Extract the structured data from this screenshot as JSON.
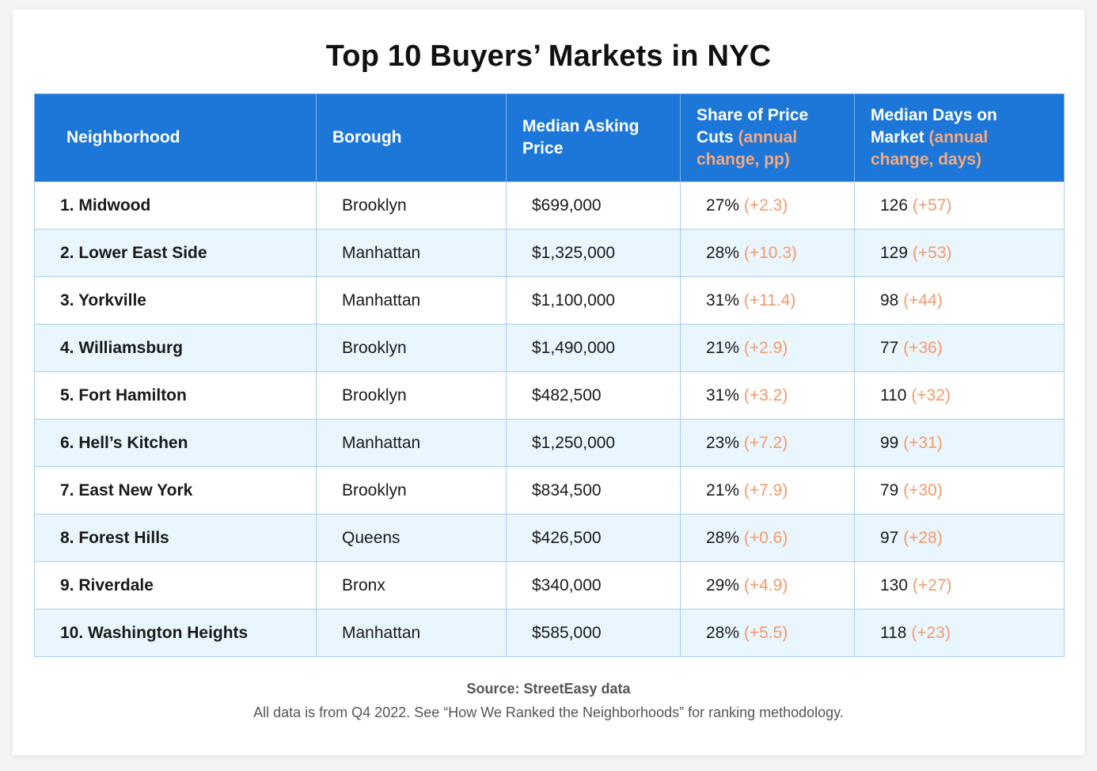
{
  "title": "Top 10 Buyers’ Markets in NYC",
  "table": {
    "headers": {
      "neighborhood": "Neighborhood",
      "borough": "Borough",
      "price": "Median Asking Price",
      "cuts_main": "Share of Price Cuts",
      "cuts_sub": "(annual change, pp)",
      "days_main": "Median Days on Market",
      "days_sub": "(annual change, days)"
    },
    "rows": [
      {
        "neighborhood": "1. Midwood",
        "borough": "Brooklyn",
        "price": "$699,000",
        "cuts": "27%",
        "cuts_change": "(+2.3)",
        "days": "126",
        "days_change": "(+57)"
      },
      {
        "neighborhood": "2. Lower East Side",
        "borough": "Manhattan",
        "price": "$1,325,000",
        "cuts": "28%",
        "cuts_change": "(+10.3)",
        "days": "129",
        "days_change": "(+53)"
      },
      {
        "neighborhood": "3. Yorkville",
        "borough": "Manhattan",
        "price": "$1,100,000",
        "cuts": "31%",
        "cuts_change": "(+11.4)",
        "days": "98",
        "days_change": "(+44)"
      },
      {
        "neighborhood": "4. Williamsburg",
        "borough": "Brooklyn",
        "price": "$1,490,000",
        "cuts": "21%",
        "cuts_change": "(+2.9)",
        "days": "77",
        "days_change": "(+36)"
      },
      {
        "neighborhood": "5. Fort Hamilton",
        "borough": "Brooklyn",
        "price": "$482,500",
        "cuts": "31%",
        "cuts_change": "(+3.2)",
        "days": "110",
        "days_change": "(+32)"
      },
      {
        "neighborhood": "6. Hell’s Kitchen",
        "borough": "Manhattan",
        "price": "$1,250,000",
        "cuts": "23%",
        "cuts_change": "(+7.2)",
        "days": "99",
        "days_change": "(+31)"
      },
      {
        "neighborhood": "7. East New York",
        "borough": "Brooklyn",
        "price": "$834,500",
        "cuts": "21%",
        "cuts_change": "(+7.9)",
        "days": "79",
        "days_change": "(+30)"
      },
      {
        "neighborhood": "8. Forest Hills",
        "borough": "Queens",
        "price": "$426,500",
        "cuts": "28%",
        "cuts_change": "(+0.6)",
        "days": "97",
        "days_change": "(+28)"
      },
      {
        "neighborhood": "9. Riverdale",
        "borough": "Bronx",
        "price": "$340,000",
        "cuts": "29%",
        "cuts_change": "(+4.9)",
        "days": "130",
        "days_change": "(+27)"
      },
      {
        "neighborhood": "10. Washington Heights",
        "borough": "Manhattan",
        "price": "$585,000",
        "cuts": "28%",
        "cuts_change": "(+5.5)",
        "days": "118",
        "days_change": "(+23)"
      }
    ]
  },
  "source": "Source: StreetEasy data",
  "note": "All data is from Q4 2022. See “How We Ranked the Neighborhoods” for ranking methodology.",
  "colors": {
    "header_bg": "#1c77d9",
    "change_text": "#f39a6b",
    "alt_row_bg": "#eaf6fd"
  }
}
